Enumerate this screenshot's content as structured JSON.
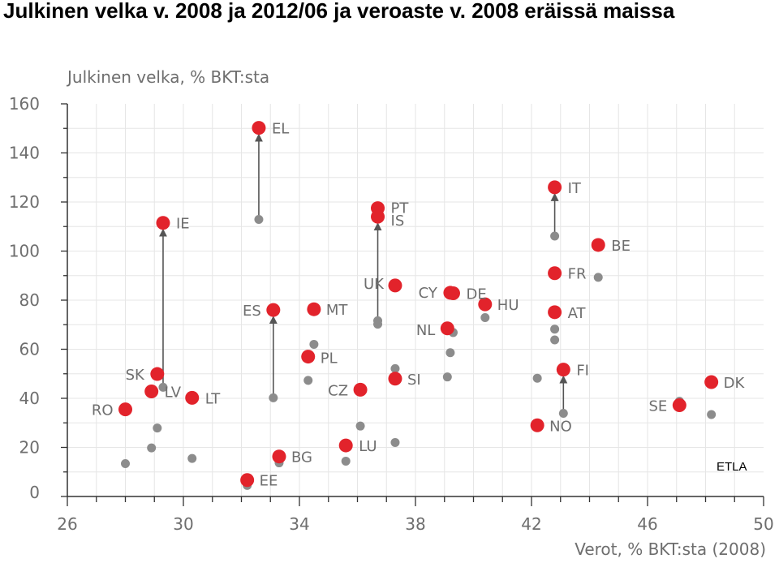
{
  "title": "Julkinen velka v. 2008 ja 2012/06 ja veroaste v. 2008 eräissä maissa",
  "watermark": "ETLA",
  "chart_data": {
    "type": "scatter",
    "ylabel": "Julkinen velka, % BKT:sta",
    "xlabel": "Verot, % BKT:sta (2008)",
    "xlim": [
      26,
      50
    ],
    "ylim": [
      0,
      160
    ],
    "x_ticks": [
      "26",
      "30",
      "34",
      "38",
      "42",
      "46",
      "50"
    ],
    "y_ticks": [
      "0",
      "20",
      "40",
      "60",
      "80",
      "100",
      "120",
      "140",
      "160"
    ],
    "grid": true,
    "colors": {
      "current": "#e2232b",
      "earlier": "#8c8c8c",
      "arrow": "#555555",
      "text": "#6e6e6e"
    },
    "points": [
      {
        "code": "EL",
        "x": 32.6,
        "debt_earlier": 112.9,
        "debt_current": 150.2,
        "arrow": true
      },
      {
        "code": "IE",
        "x": 29.3,
        "debt_earlier": 44.5,
        "debt_current": 111.5,
        "arrow": true
      },
      {
        "code": "PT",
        "x": 36.7,
        "debt_earlier": 71.6,
        "debt_current": 117.5,
        "arrow": false
      },
      {
        "code": "IS",
        "x": 36.7,
        "debt_earlier": 70.2,
        "debt_current": 114.0,
        "arrow": true
      },
      {
        "code": "IT",
        "x": 42.8,
        "debt_earlier": 106.1,
        "debt_current": 126.0,
        "arrow": true
      },
      {
        "code": "BE",
        "x": 44.3,
        "debt_earlier": 89.3,
        "debt_current": 102.5,
        "arrow": false
      },
      {
        "code": "FR",
        "x": 42.8,
        "debt_earlier": 68.2,
        "debt_current": 91.0,
        "arrow": false
      },
      {
        "code": "AT",
        "x": 42.8,
        "debt_earlier": 63.8,
        "debt_current": 75.1,
        "arrow": false
      },
      {
        "code": "UK",
        "x": 37.3,
        "debt_earlier": 52.1,
        "debt_current": 86.0,
        "arrow": false
      },
      {
        "code": "CY",
        "x": 39.2,
        "debt_earlier": 58.6,
        "debt_current": 83.0,
        "arrow": false
      },
      {
        "code": "DE",
        "x": 39.3,
        "debt_earlier": 66.8,
        "debt_current": 82.8,
        "arrow": false
      },
      {
        "code": "HU",
        "x": 40.4,
        "debt_earlier": 72.9,
        "debt_current": 78.3,
        "arrow": false
      },
      {
        "code": "NL",
        "x": 39.1,
        "debt_earlier": 48.7,
        "debt_current": 68.5,
        "arrow": false
      },
      {
        "code": "ES",
        "x": 33.1,
        "debt_earlier": 40.2,
        "debt_current": 76.0,
        "arrow": true
      },
      {
        "code": "MT",
        "x": 34.5,
        "debt_earlier": 62.0,
        "debt_current": 76.3,
        "arrow": false
      },
      {
        "code": "PL",
        "x": 34.3,
        "debt_earlier": 47.3,
        "debt_current": 57.0,
        "arrow": false
      },
      {
        "code": "SI",
        "x": 37.3,
        "debt_earlier": 22.0,
        "debt_current": 48.0,
        "arrow": false
      },
      {
        "code": "CZ",
        "x": 36.1,
        "debt_earlier": 28.7,
        "debt_current": 43.5,
        "arrow": false
      },
      {
        "code": "FI",
        "x": 43.1,
        "debt_earlier": 33.9,
        "debt_current": 51.7,
        "arrow": true
      },
      {
        "code": "NO",
        "x": 42.2,
        "debt_earlier": 48.2,
        "debt_current": 29.0,
        "arrow": false
      },
      {
        "code": "SK",
        "x": 29.1,
        "debt_earlier": 27.9,
        "debt_current": 49.9,
        "arrow": false
      },
      {
        "code": "LV",
        "x": 28.9,
        "debt_earlier": 19.8,
        "debt_current": 42.8,
        "arrow": false
      },
      {
        "code": "LT",
        "x": 30.3,
        "debt_earlier": 15.5,
        "debt_current": 40.2,
        "arrow": false
      },
      {
        "code": "RO",
        "x": 28.0,
        "debt_earlier": 13.4,
        "debt_current": 35.5,
        "arrow": false
      },
      {
        "code": "BG",
        "x": 33.3,
        "debt_earlier": 13.7,
        "debt_current": 16.3,
        "arrow": false
      },
      {
        "code": "LU",
        "x": 35.6,
        "debt_earlier": 14.4,
        "debt_current": 20.8,
        "arrow": false
      },
      {
        "code": "EE",
        "x": 32.2,
        "debt_earlier": 4.5,
        "debt_current": 6.7,
        "arrow": false
      },
      {
        "code": "SE",
        "x": 47.1,
        "debt_earlier": 38.8,
        "debt_current": 37.2,
        "arrow": false
      },
      {
        "code": "DK",
        "x": 48.2,
        "debt_earlier": 33.4,
        "debt_current": 46.6,
        "arrow": false
      }
    ]
  }
}
